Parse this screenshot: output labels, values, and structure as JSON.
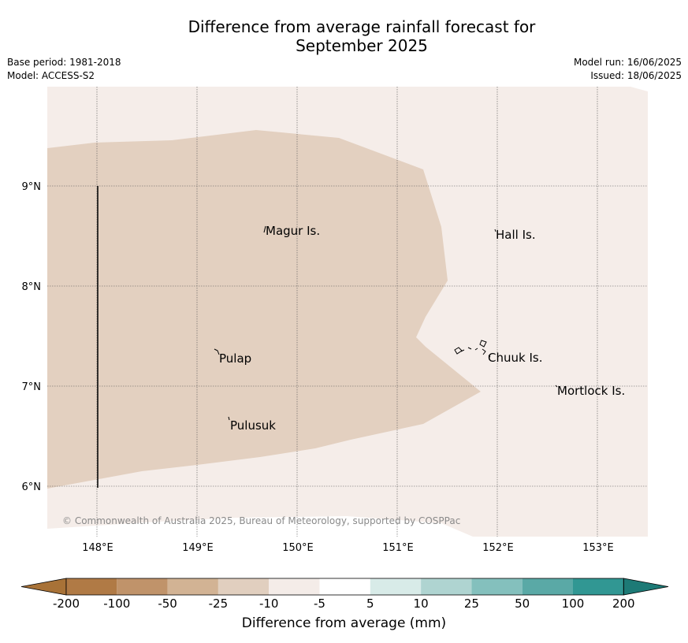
{
  "title_line1": "Difference from average rainfall forecast for",
  "title_line2": "September 2025",
  "base_period": "Base period: 1981-2018",
  "model": "Model: ACCESS-S2",
  "model_run": "Model run: 16/06/2025",
  "issued": "Issued: 18/06/2025",
  "copyright": "© Commonwealth of Australia 2025, Bureau of Meteorology, supported by COSPPac",
  "lat_ticks": [
    "9°N",
    "8°N",
    "7°N",
    "6°N"
  ],
  "lon_ticks": [
    "148°E",
    "149°E",
    "150°E",
    "151°E",
    "152°E",
    "153°E"
  ],
  "places": [
    {
      "name": "Magur Is.",
      "lon": 149.68,
      "lat": 8.57
    },
    {
      "name": "Hall Is.",
      "lon": 151.98,
      "lat": 8.52
    },
    {
      "name": "Pulap",
      "lon": 149.22,
      "lat": 7.28
    },
    {
      "name": "Chuuk Is.",
      "lon": 151.9,
      "lat": 7.29
    },
    {
      "name": "Mortlock Is.",
      "lon": 152.6,
      "lat": 6.96
    },
    {
      "name": "Pulusuk",
      "lon": 149.32,
      "lat": 6.61
    }
  ],
  "colorbar": {
    "label": "Difference from average (mm)",
    "ticks": [
      "-200",
      "-100",
      "-50",
      "-25",
      "-10",
      "-5",
      "5",
      "10",
      "25",
      "50",
      "100",
      "200"
    ],
    "colors": [
      "#a87237",
      "#b07a45",
      "#c0936a",
      "#d2b394",
      "#e1cfbf",
      "#f4ece8",
      "#ffffff",
      "#d8ebe8",
      "#afd4d1",
      "#84c0bd",
      "#5aa9a6",
      "#319793",
      "#1d7a76"
    ]
  },
  "regions": [
    {
      "category": "-25 to -10",
      "color": "#e3d0c0"
    },
    {
      "category": "-10 to -5",
      "color": "#f5ede9"
    }
  ]
}
